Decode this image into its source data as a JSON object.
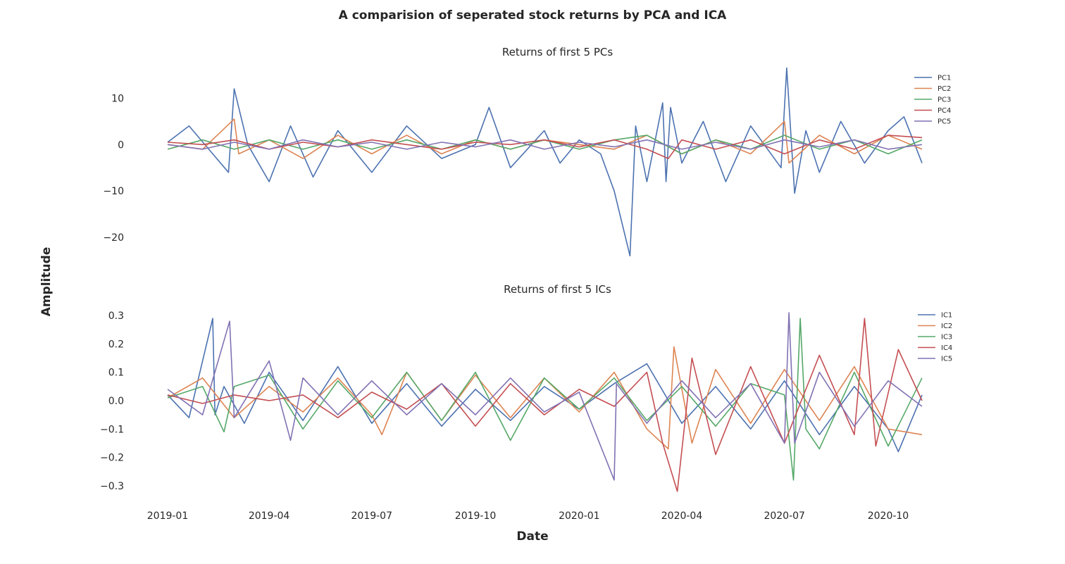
{
  "figure": {
    "title": "A comparision of seperated stock returns by PCA and ICA",
    "xlabel": "Date",
    "ylabel": "Amplitude"
  },
  "chart_data": [
    {
      "type": "line",
      "title": "Returns of first 5 PCs",
      "x_axis": "date",
      "x_ticks": [
        "2019-01",
        "2019-04",
        "2019-07",
        "2019-10",
        "2020-01",
        "2020-04",
        "2020-07",
        "2020-10"
      ],
      "x_range": [
        "2019-01-01",
        "2020-10-31"
      ],
      "y_ticks": [
        10,
        0,
        -10,
        -20
      ],
      "tick_labels": [
        "10",
        "0",
        "−10",
        "−20"
      ],
      "ylim": [
        -25,
        17.5
      ],
      "grid": false,
      "legend": "top-right",
      "series": [
        {
          "name": "PC1",
          "color": "#4c72b0",
          "x": [
            "2019-01-01",
            "2019-01-20",
            "2019-02-10",
            "2019-02-24",
            "2019-03-01",
            "2019-03-13",
            "2019-04-01",
            "2019-04-20",
            "2019-05-10",
            "2019-06-01",
            "2019-07-01",
            "2019-08-01",
            "2019-09-01",
            "2019-10-01",
            "2019-10-13",
            "2019-11-01",
            "2019-12-01",
            "2019-12-15",
            "2020-01-01",
            "2020-01-20",
            "2020-02-01",
            "2020-02-15",
            "2020-02-20",
            "2020-03-01",
            "2020-03-15",
            "2020-03-18",
            "2020-03-22",
            "2020-04-01",
            "2020-04-20",
            "2020-05-10",
            "2020-06-01",
            "2020-06-28",
            "2020-07-03",
            "2020-07-10",
            "2020-07-20",
            "2020-08-01",
            "2020-08-20",
            "2020-09-10",
            "2020-10-01",
            "2020-10-15",
            "2020-10-31"
          ],
          "y": [
            0.5,
            4,
            -2,
            -6,
            12,
            0,
            -8,
            4,
            -7,
            3,
            -6,
            4,
            -3,
            0,
            8,
            -5,
            3,
            -4,
            1,
            -2,
            -10,
            -24,
            4,
            -8,
            9,
            -8,
            8,
            -4,
            5,
            -8,
            4,
            -5,
            16.5,
            -10.5,
            3,
            -6,
            5,
            -4,
            3,
            6,
            -4
          ]
        },
        {
          "name": "PC2",
          "color": "#dd8452",
          "x": [
            "2019-01-01",
            "2019-02-01",
            "2019-03-01",
            "2019-03-05",
            "2019-04-01",
            "2019-05-01",
            "2019-06-01",
            "2019-07-01",
            "2019-08-01",
            "2019-09-01",
            "2019-10-01",
            "2019-11-01",
            "2019-12-01",
            "2020-01-01",
            "2020-02-01",
            "2020-03-01",
            "2020-04-01",
            "2020-05-01",
            "2020-06-01",
            "2020-07-01",
            "2020-07-05",
            "2020-08-01",
            "2020-09-01",
            "2020-10-01",
            "2020-10-31"
          ],
          "y": [
            0,
            -1,
            5.5,
            -2,
            1,
            -3,
            2,
            -2,
            2,
            -2,
            1,
            -1,
            1,
            0,
            -1,
            2,
            -2,
            1,
            -2,
            5,
            -4,
            2,
            -2,
            2,
            -1
          ]
        },
        {
          "name": "PC3",
          "color": "#55a868",
          "x": [
            "2019-01-01",
            "2019-02-01",
            "2019-03-01",
            "2019-04-01",
            "2019-05-01",
            "2019-06-01",
            "2019-07-01",
            "2019-08-01",
            "2019-09-01",
            "2019-10-01",
            "2019-11-01",
            "2019-12-01",
            "2020-01-01",
            "2020-02-01",
            "2020-03-01",
            "2020-04-01",
            "2020-05-01",
            "2020-06-01",
            "2020-07-01",
            "2020-08-01",
            "2020-09-01",
            "2020-10-01",
            "2020-10-31"
          ],
          "y": [
            -1,
            1,
            -1,
            1,
            -1,
            1,
            -1,
            1,
            -1,
            1,
            -1,
            1,
            -1,
            1,
            2,
            -2,
            1,
            -1,
            2,
            -1,
            1,
            -2,
            1
          ]
        },
        {
          "name": "PC4",
          "color": "#c44e52",
          "x": [
            "2019-01-01",
            "2019-02-01",
            "2019-03-01",
            "2019-04-01",
            "2019-05-01",
            "2019-06-01",
            "2019-07-01",
            "2019-08-01",
            "2019-09-01",
            "2019-10-01",
            "2019-11-01",
            "2019-12-01",
            "2020-01-01",
            "2020-02-01",
            "2020-03-01",
            "2020-03-20",
            "2020-04-01",
            "2020-05-01",
            "2020-06-01",
            "2020-07-01",
            "2020-08-01",
            "2020-09-01",
            "2020-10-01",
            "2020-10-31"
          ],
          "y": [
            0.5,
            0,
            1,
            -1,
            0.5,
            -0.5,
            1,
            0,
            -1,
            0.5,
            0,
            1,
            -0.5,
            1,
            -1,
            -3,
            1,
            -1,
            1,
            -2,
            1,
            -1,
            2,
            1.5
          ]
        },
        {
          "name": "PC5",
          "color": "#8172b3",
          "x": [
            "2019-01-01",
            "2019-02-01",
            "2019-03-01",
            "2019-04-01",
            "2019-05-01",
            "2019-06-01",
            "2019-07-01",
            "2019-08-01",
            "2019-09-01",
            "2019-10-01",
            "2019-11-01",
            "2019-12-01",
            "2020-01-01",
            "2020-02-01",
            "2020-03-01",
            "2020-04-01",
            "2020-05-01",
            "2020-06-01",
            "2020-07-01",
            "2020-08-01",
            "2020-09-01",
            "2020-10-01",
            "2020-10-31"
          ],
          "y": [
            0,
            -1,
            0.5,
            -1,
            1,
            -0.5,
            0.5,
            -1,
            0.5,
            -0.5,
            1,
            -1,
            0.5,
            -0.5,
            1,
            -1,
            0.5,
            -1,
            1,
            -0.5,
            1,
            -1,
            0
          ]
        }
      ]
    },
    {
      "type": "line",
      "title": "Returns of first 5 ICs",
      "x_axis": "date",
      "x_ticks": [
        "2019-01",
        "2019-04",
        "2019-07",
        "2019-10",
        "2020-01",
        "2020-04",
        "2020-07",
        "2020-10"
      ],
      "x_range": [
        "2019-01-01",
        "2020-10-31"
      ],
      "y_ticks": [
        0.3,
        0.2,
        0.1,
        0.0,
        -0.1,
        -0.2,
        -0.3
      ],
      "tick_labels": [
        "0.3",
        "0.2",
        "0.1",
        "0.0",
        "−0.1",
        "−0.2",
        "−0.3"
      ],
      "ylim": [
        -0.35,
        0.35
      ],
      "grid": false,
      "legend": "top-right",
      "series": [
        {
          "name": "IC1",
          "color": "#4c72b0",
          "x": [
            "2019-01-01",
            "2019-01-20",
            "2019-02-10",
            "2019-02-12",
            "2019-02-20",
            "2019-03-10",
            "2019-04-01",
            "2019-05-01",
            "2019-06-01",
            "2019-07-01",
            "2019-08-01",
            "2019-09-01",
            "2019-10-01",
            "2019-11-01",
            "2019-12-01",
            "2020-01-01",
            "2020-02-01",
            "2020-03-01",
            "2020-04-01",
            "2020-05-01",
            "2020-06-01",
            "2020-07-01",
            "2020-08-01",
            "2020-09-01",
            "2020-10-01",
            "2020-10-10",
            "2020-10-31"
          ],
          "y": [
            0.02,
            -0.06,
            0.29,
            -0.05,
            0.05,
            -0.08,
            0.1,
            -0.07,
            0.12,
            -0.08,
            0.06,
            -0.09,
            0.04,
            -0.07,
            0.05,
            -0.03,
            0.06,
            0.13,
            -0.08,
            0.05,
            -0.1,
            0.07,
            -0.12,
            0.05,
            -0.1,
            -0.18,
            0.02
          ]
        },
        {
          "name": "IC2",
          "color": "#dd8452",
          "x": [
            "2019-01-01",
            "2019-02-01",
            "2019-03-01",
            "2019-04-01",
            "2019-05-01",
            "2019-06-01",
            "2019-07-01",
            "2019-07-10",
            "2019-08-01",
            "2019-09-01",
            "2019-10-01",
            "2019-11-01",
            "2019-12-01",
            "2020-01-01",
            "2020-02-01",
            "2020-03-01",
            "2020-03-20",
            "2020-03-25",
            "2020-04-10",
            "2020-05-01",
            "2020-06-01",
            "2020-07-01",
            "2020-08-01",
            "2020-09-01",
            "2020-10-01",
            "2020-10-31"
          ],
          "y": [
            0.01,
            0.08,
            -0.06,
            0.05,
            -0.04,
            0.08,
            -0.05,
            -0.12,
            0.1,
            -0.07,
            0.09,
            -0.06,
            0.08,
            -0.04,
            0.1,
            -0.1,
            -0.17,
            0.19,
            -0.15,
            0.11,
            -0.08,
            0.11,
            -0.07,
            0.12,
            -0.1,
            -0.12
          ]
        },
        {
          "name": "IC3",
          "color": "#55a868",
          "x": [
            "2019-01-01",
            "2019-02-01",
            "2019-02-20",
            "2019-03-01",
            "2019-04-01",
            "2019-05-01",
            "2019-06-01",
            "2019-07-01",
            "2019-08-01",
            "2019-09-01",
            "2019-10-01",
            "2019-11-01",
            "2019-12-01",
            "2020-01-01",
            "2020-02-01",
            "2020-03-01",
            "2020-04-01",
            "2020-05-01",
            "2020-06-01",
            "2020-07-01",
            "2020-07-09",
            "2020-07-15",
            "2020-07-20",
            "2020-08-01",
            "2020-09-01",
            "2020-10-01",
            "2020-10-31"
          ],
          "y": [
            0.01,
            0.05,
            -0.11,
            0.05,
            0.09,
            -0.1,
            0.07,
            -0.06,
            0.1,
            -0.07,
            0.1,
            -0.14,
            0.08,
            -0.03,
            0.08,
            -0.07,
            0.05,
            -0.09,
            0.06,
            0.02,
            -0.28,
            0.29,
            -0.1,
            -0.17,
            0.1,
            -0.16,
            0.08
          ]
        },
        {
          "name": "IC4",
          "color": "#c44e52",
          "x": [
            "2019-01-01",
            "2019-02-01",
            "2019-03-01",
            "2019-04-01",
            "2019-05-01",
            "2019-06-01",
            "2019-07-01",
            "2019-08-01",
            "2019-09-01",
            "2019-10-01",
            "2019-11-01",
            "2019-12-01",
            "2020-01-01",
            "2020-02-01",
            "2020-03-01",
            "2020-03-15",
            "2020-03-28",
            "2020-04-10",
            "2020-05-01",
            "2020-06-01",
            "2020-07-01",
            "2020-08-01",
            "2020-09-01",
            "2020-09-10",
            "2020-09-20",
            "2020-10-10",
            "2020-10-31"
          ],
          "y": [
            0.02,
            -0.01,
            0.02,
            0,
            0.02,
            -0.06,
            0.03,
            -0.03,
            0.06,
            -0.09,
            0.06,
            -0.05,
            0.04,
            -0.02,
            0.1,
            -0.15,
            -0.32,
            0.15,
            -0.19,
            0.12,
            -0.15,
            0.16,
            -0.12,
            0.29,
            -0.16,
            0.18,
            0
          ]
        },
        {
          "name": "IC5",
          "color": "#8172b3",
          "x": [
            "2019-01-01",
            "2019-02-01",
            "2019-02-25",
            "2019-03-01",
            "2019-04-01",
            "2019-04-20",
            "2019-05-01",
            "2019-06-01",
            "2019-07-01",
            "2019-08-01",
            "2019-09-01",
            "2019-10-01",
            "2019-11-01",
            "2019-12-01",
            "2020-01-01",
            "2020-02-01",
            "2020-02-03",
            "2020-03-01",
            "2020-04-01",
            "2020-05-01",
            "2020-06-01",
            "2020-07-01",
            "2020-07-05",
            "2020-07-10",
            "2020-08-01",
            "2020-09-01",
            "2020-10-01",
            "2020-10-31"
          ],
          "y": [
            0.04,
            -0.05,
            0.28,
            -0.06,
            0.14,
            -0.14,
            0.08,
            -0.05,
            0.07,
            -0.05,
            0.06,
            -0.05,
            0.08,
            -0.04,
            0.03,
            -0.28,
            0.06,
            -0.08,
            0.07,
            -0.06,
            0.06,
            -0.15,
            0.31,
            -0.15,
            0.1,
            -0.09,
            0.07,
            -0.02
          ]
        }
      ]
    }
  ]
}
